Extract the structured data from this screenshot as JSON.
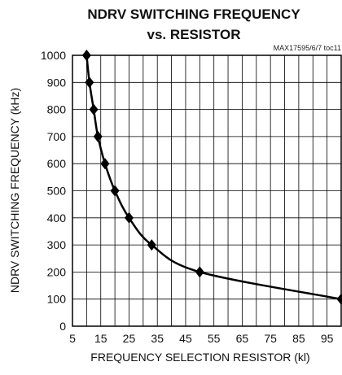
{
  "chart_data": {
    "type": "line",
    "title_line1": "NDRV SWITCHING FREQUENCY",
    "title_line2": "vs. RESISTOR",
    "code": "MAX17595/6/7 toc11",
    "xlabel": "FREQUENCY SELECTION RESISTOR (kl)",
    "ylabel": "NDRV SWITCHING FREQUENCY (kHz)",
    "xlim": [
      5,
      100
    ],
    "ylim": [
      0,
      1000
    ],
    "x_ticks": [
      5,
      15,
      25,
      35,
      45,
      55,
      65,
      75,
      85,
      95
    ],
    "x_tick_labels": [
      "5",
      "15",
      "25",
      "35",
      "45",
      "55",
      "65",
      "75",
      "85",
      "95"
    ],
    "y_ticks": [
      0,
      100,
      200,
      300,
      400,
      500,
      600,
      700,
      800,
      900,
      1000
    ],
    "y_tick_labels": [
      "0",
      "100",
      "200",
      "300",
      "400",
      "500",
      "600",
      "700",
      "800",
      "900",
      "1000"
    ],
    "x_grid_values": [
      5,
      10,
      15,
      20,
      25,
      30,
      35,
      40,
      45,
      50,
      55,
      60,
      65,
      70,
      75,
      80,
      85,
      90,
      95,
      100
    ],
    "y_grid_values": [
      0,
      100,
      200,
      300,
      400,
      500,
      600,
      700,
      800,
      900,
      1000
    ],
    "grid": true,
    "marker": "diamond",
    "series": [
      {
        "x": [
          10,
          11,
          12.5,
          14,
          16.5,
          20,
          25,
          33,
          50,
          100
        ],
        "y": [
          1000,
          900,
          800,
          700,
          600,
          500,
          400,
          300,
          200,
          100
        ]
      }
    ]
  }
}
